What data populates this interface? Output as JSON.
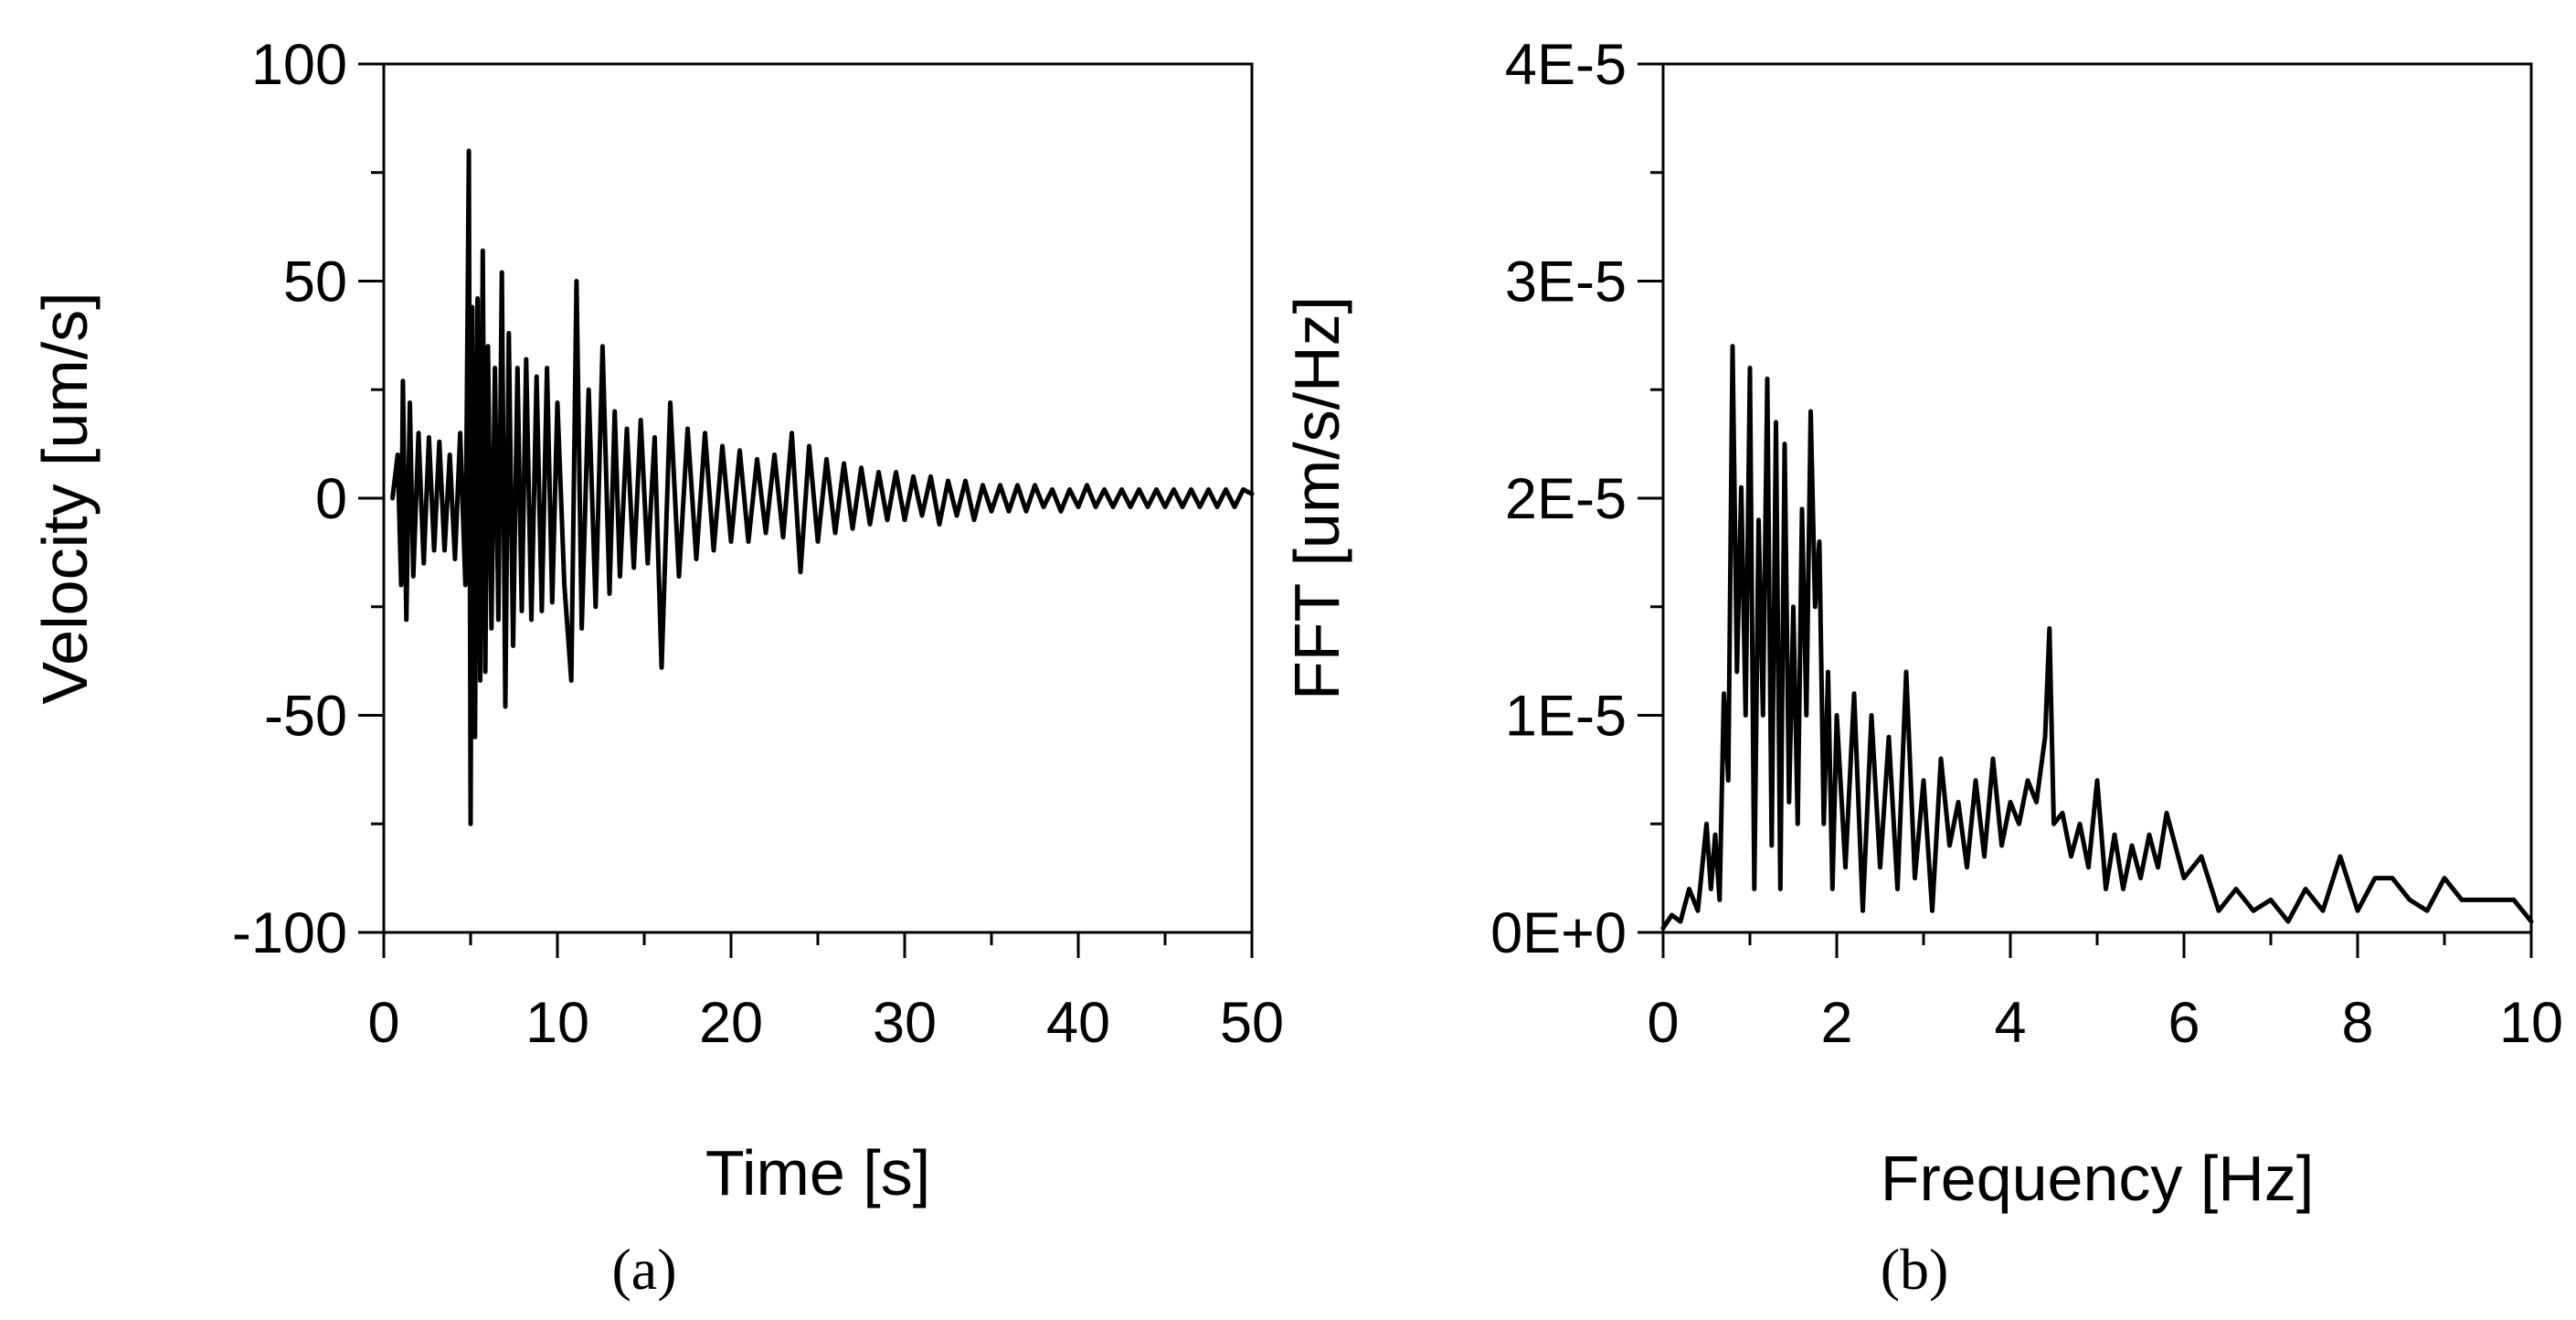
{
  "chart_data": [
    {
      "type": "line",
      "panel_label": "(a)",
      "xlabel": "Time [s]",
      "ylabel": "Velocity [um/s]",
      "xlim": [
        0,
        50
      ],
      "ylim": [
        -100,
        100
      ],
      "x_major_ticks": [
        0,
        10,
        20,
        30,
        40,
        50
      ],
      "x_minor_ticks": [
        5,
        15,
        25,
        35,
        45
      ],
      "y_major_ticks": [
        -100,
        -50,
        0,
        50,
        100
      ],
      "y_minor_ticks": [
        -75,
        -25,
        25,
        75
      ],
      "x_tick_labels": [
        "0",
        "10",
        "20",
        "30",
        "40",
        "50"
      ],
      "y_tick_labels": [
        "-100",
        "-50",
        "0",
        "50",
        "100"
      ],
      "grid": false,
      "legend": false,
      "line_color": "#000000",
      "series": [
        {
          "x": [
            0.5,
            0.8,
            1.0,
            1.1,
            1.3,
            1.5,
            1.7,
            2.0,
            2.3,
            2.6,
            2.9,
            3.2,
            3.5,
            3.8,
            4.1,
            4.4,
            4.7,
            4.9,
            5.0,
            5.1,
            5.25,
            5.4,
            5.55,
            5.7,
            5.85,
            6.0,
            6.2,
            6.4,
            6.6,
            6.8,
            7.0,
            7.2,
            7.45,
            7.7,
            7.95,
            8.2,
            8.5,
            8.8,
            9.1,
            9.4,
            9.7,
            10.0,
            10.4,
            10.8,
            11.1,
            11.4,
            11.8,
            12.2,
            12.6,
            13.0,
            13.3,
            13.6,
            14.0,
            14.4,
            14.8,
            15.2,
            15.6,
            16.0,
            16.5,
            17.0,
            17.5,
            18.0,
            18.5,
            19.0,
            19.5,
            20.0,
            20.5,
            21.0,
            21.5,
            22.0,
            22.5,
            23.0,
            23.5,
            24.0,
            24.5,
            25.0,
            25.5,
            26.0,
            26.5,
            27.0,
            27.5,
            28.0,
            28.5,
            29.0,
            29.5,
            30.0,
            30.5,
            31.0,
            31.5,
            32.0,
            32.5,
            33.0,
            33.5,
            34.0,
            34.5,
            35.0,
            35.5,
            36.0,
            36.5,
            37.0,
            37.5,
            38.0,
            38.5,
            39.0,
            39.5,
            40.0,
            40.5,
            41.0,
            41.5,
            42.0,
            42.5,
            43.0,
            43.5,
            44.0,
            44.5,
            45.0,
            45.5,
            46.0,
            46.5,
            47.0,
            47.5,
            48.0,
            48.5,
            49.0,
            49.5,
            50.0
          ],
          "y": [
            0,
            10,
            -20,
            27,
            -28,
            22,
            -18,
            15,
            -15,
            14,
            -12,
            13,
            -12,
            10,
            -14,
            15,
            -20,
            80,
            -75,
            44,
            -55,
            46,
            -42,
            57,
            -40,
            35,
            -30,
            30,
            -28,
            52,
            -48,
            38,
            -34,
            30,
            -26,
            32,
            -28,
            28,
            -26,
            30,
            -24,
            22,
            -20,
            -42,
            50,
            -30,
            25,
            -25,
            35,
            -22,
            20,
            -18,
            16,
            -16,
            18,
            -15,
            14,
            -39,
            22,
            -18,
            16,
            -14,
            15,
            -12,
            12,
            -10,
            11,
            -10,
            9,
            -8,
            10,
            -9,
            15,
            -17,
            12,
            -10,
            9,
            -8,
            8,
            -7,
            7,
            -6,
            6,
            -5,
            6,
            -5,
            5,
            -4,
            5,
            -6,
            4,
            -4,
            4,
            -5,
            3,
            -3,
            3,
            -3,
            3,
            -3,
            3,
            -2,
            2,
            -3,
            2,
            -2,
            3,
            -2,
            2,
            -2,
            2,
            -2,
            2,
            -2,
            2,
            -2,
            2,
            -2,
            2,
            -2,
            2,
            -2,
            2,
            -2,
            2,
            1
          ]
        }
      ]
    },
    {
      "type": "line",
      "panel_label": "(b)",
      "xlabel": "Frequency [Hz]",
      "ylabel": "FFT [um/s/Hz]",
      "xlim": [
        0,
        10
      ],
      "ylim": [
        0,
        4e-05
      ],
      "x_major_ticks": [
        0,
        2,
        4,
        6,
        8,
        10
      ],
      "x_minor_ticks": [
        1,
        3,
        5,
        7,
        9
      ],
      "y_major_ticks": [
        0,
        1e-05,
        2e-05,
        3e-05,
        4e-05
      ],
      "y_minor_ticks": [
        5e-06,
        1.5e-05,
        2.5e-05,
        3.5e-05
      ],
      "x_tick_labels": [
        "0",
        "2",
        "4",
        "6",
        "8",
        "10"
      ],
      "y_tick_labels": [
        "0E+0",
        "1E-5",
        "2E-5",
        "3E-5",
        "4E-5"
      ],
      "grid": false,
      "legend": false,
      "line_color": "#000000",
      "series": [
        {
          "x": [
            0.0,
            0.1,
            0.2,
            0.3,
            0.4,
            0.5,
            0.55,
            0.6,
            0.65,
            0.7,
            0.75,
            0.8,
            0.85,
            0.9,
            0.95,
            1.0,
            1.05,
            1.1,
            1.15,
            1.2,
            1.25,
            1.3,
            1.35,
            1.4,
            1.45,
            1.5,
            1.55,
            1.6,
            1.65,
            1.7,
            1.75,
            1.8,
            1.85,
            1.9,
            1.95,
            2.0,
            2.1,
            2.2,
            2.3,
            2.4,
            2.5,
            2.6,
            2.7,
            2.8,
            2.9,
            3.0,
            3.1,
            3.2,
            3.3,
            3.4,
            3.5,
            3.6,
            3.7,
            3.8,
            3.9,
            4.0,
            4.1,
            4.2,
            4.3,
            4.4,
            4.45,
            4.5,
            4.6,
            4.7,
            4.8,
            4.9,
            5.0,
            5.1,
            5.2,
            5.3,
            5.4,
            5.5,
            5.6,
            5.7,
            5.8,
            5.9,
            6.0,
            6.2,
            6.4,
            6.6,
            6.8,
            7.0,
            7.2,
            7.4,
            7.6,
            7.8,
            8.0,
            8.2,
            8.4,
            8.6,
            8.8,
            9.0,
            9.2,
            9.4,
            9.6,
            9.8,
            10.0
          ],
          "y": [
            2e-07,
            8e-07,
            5e-07,
            2e-06,
            1e-06,
            5e-06,
            2e-06,
            4.5e-06,
            1.5e-06,
            1.1e-05,
            7e-06,
            2.7e-05,
            1.2e-05,
            2.05e-05,
            1e-05,
            2.6e-05,
            2e-06,
            1.9e-05,
            1e-05,
            2.55e-05,
            4e-06,
            2.35e-05,
            2e-06,
            2.25e-05,
            6e-06,
            1.5e-05,
            5e-06,
            1.95e-05,
            1e-05,
            2.4e-05,
            1.5e-05,
            1.8e-05,
            5e-06,
            1.2e-05,
            2e-06,
            1e-05,
            3e-06,
            1.1e-05,
            1e-06,
            1e-05,
            3e-06,
            9e-06,
            2e-06,
            1.2e-05,
            2.5e-06,
            7e-06,
            1e-06,
            8e-06,
            4e-06,
            6e-06,
            3e-06,
            7e-06,
            3.5e-06,
            8e-06,
            4e-06,
            6e-06,
            5e-06,
            7e-06,
            6e-06,
            9e-06,
            1.4e-05,
            5e-06,
            5.5e-06,
            3.5e-06,
            5e-06,
            3e-06,
            7e-06,
            2e-06,
            4.5e-06,
            2e-06,
            4e-06,
            2.5e-06,
            4.5e-06,
            3e-06,
            5.5e-06,
            4e-06,
            2.5e-06,
            3.5e-06,
            1e-06,
            2e-06,
            1e-06,
            1.5e-06,
            5e-07,
            2e-06,
            1e-06,
            3.5e-06,
            1e-06,
            2.5e-06,
            2.5e-06,
            1.5e-06,
            1e-06,
            2.5e-06,
            1.5e-06,
            1.5e-06,
            1.5e-06,
            1.5e-06,
            5e-07
          ]
        }
      ]
    }
  ]
}
